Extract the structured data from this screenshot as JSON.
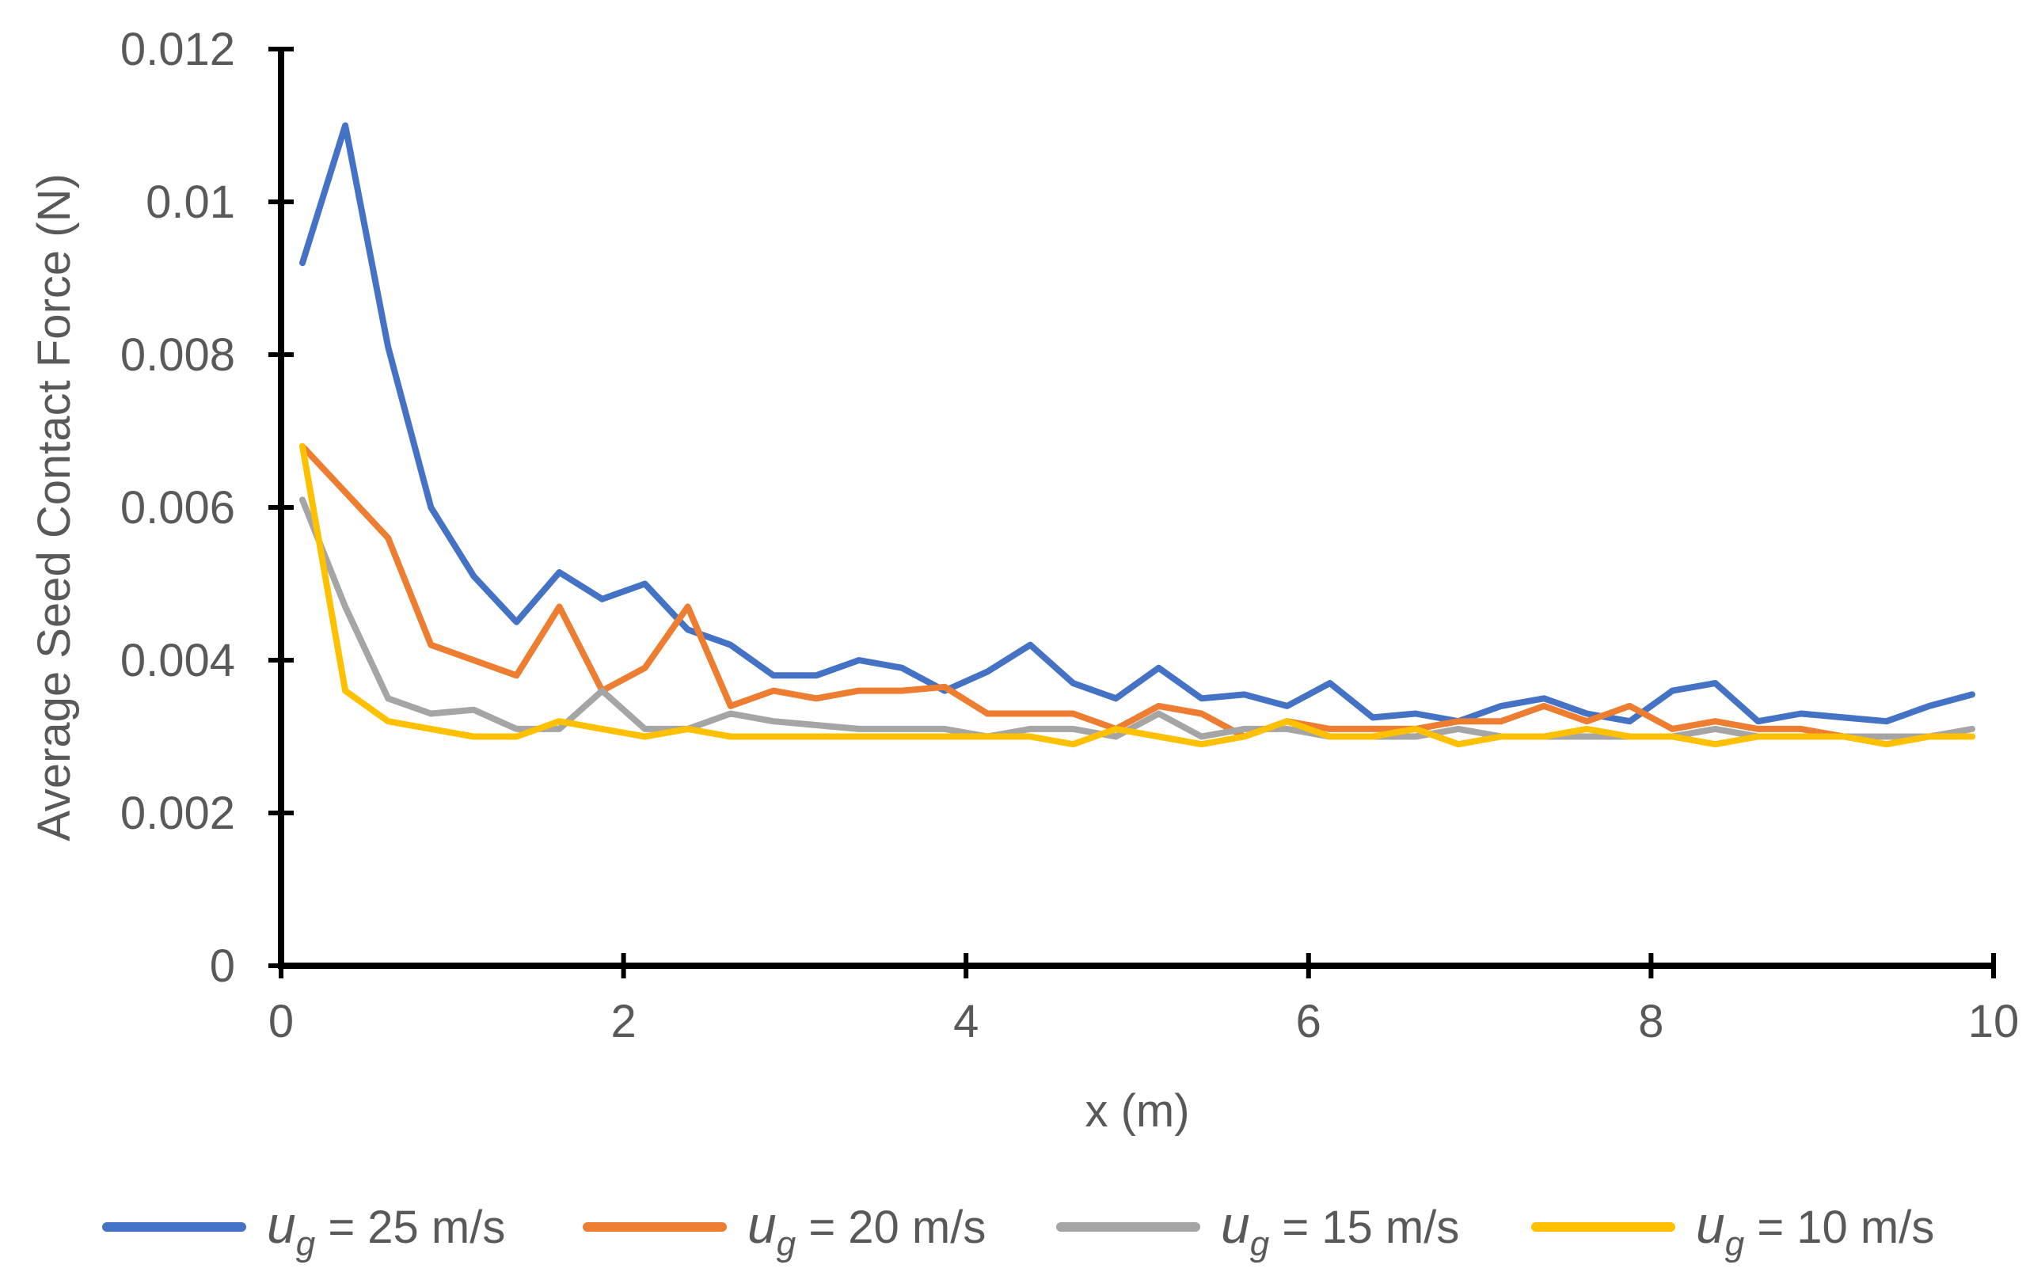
{
  "chart_data": {
    "type": "line",
    "title": "",
    "xlabel": "x (m)",
    "ylabel": "Average Seed Contact Force (N)",
    "xlim": [
      0,
      10
    ],
    "ylim": [
      0,
      0.012
    ],
    "xticks": [
      0,
      2,
      4,
      6,
      8,
      10
    ],
    "xtick_labels": [
      "0",
      "2",
      "4",
      "6",
      "8",
      "10"
    ],
    "yticks": [
      0,
      0.002,
      0.004,
      0.006,
      0.008,
      0.01,
      0.012
    ],
    "ytick_labels": [
      "0",
      "0.002",
      "0.004",
      "0.006",
      "0.008",
      "0.01",
      "0.012"
    ],
    "grid": false,
    "legend_position": "bottom",
    "x": [
      0.125,
      0.375,
      0.625,
      0.875,
      1.125,
      1.375,
      1.625,
      1.875,
      2.125,
      2.375,
      2.625,
      2.875,
      3.125,
      3.375,
      3.625,
      3.875,
      4.125,
      4.375,
      4.625,
      4.875,
      5.125,
      5.375,
      5.625,
      5.875,
      6.125,
      6.375,
      6.625,
      6.875,
      7.125,
      7.375,
      7.625,
      7.875,
      8.125,
      8.375,
      8.625,
      8.875,
      9.125,
      9.375,
      9.625,
      9.875
    ],
    "series": [
      {
        "name": "u_g = 25 m/s",
        "legend_symbol": "u",
        "legend_subscript": "g",
        "legend_text": " = 25 m/s",
        "color": "#4472C4",
        "values": [
          0.0092,
          0.011,
          0.0081,
          0.006,
          0.0051,
          0.0045,
          0.00515,
          0.0048,
          0.005,
          0.0044,
          0.0042,
          0.0038,
          0.0038,
          0.004,
          0.0039,
          0.0036,
          0.00385,
          0.0042,
          0.0037,
          0.0035,
          0.0039,
          0.0035,
          0.00355,
          0.0034,
          0.0037,
          0.00325,
          0.0033,
          0.0032,
          0.0034,
          0.0035,
          0.0033,
          0.0032,
          0.0036,
          0.0037,
          0.0032,
          0.0033,
          0.00325,
          0.0032,
          0.0034,
          0.00355
        ]
      },
      {
        "name": "u_g = 20 m/s",
        "legend_symbol": "u",
        "legend_subscript": "g",
        "legend_text": " = 20 m/s",
        "color": "#ED7D31",
        "values": [
          0.0068,
          0.0062,
          0.0056,
          0.0042,
          0.004,
          0.0038,
          0.0047,
          0.0036,
          0.0039,
          0.0047,
          0.0034,
          0.0036,
          0.0035,
          0.0036,
          0.0036,
          0.00365,
          0.0033,
          0.0033,
          0.0033,
          0.0031,
          0.0034,
          0.0033,
          0.003,
          0.0032,
          0.0031,
          0.0031,
          0.0031,
          0.0032,
          0.0032,
          0.0034,
          0.0032,
          0.0034,
          0.0031,
          0.0032,
          0.0031,
          0.0031,
          0.003,
          0.003,
          0.003,
          0.003
        ]
      },
      {
        "name": "u_g = 15 m/s",
        "legend_symbol": "u",
        "legend_subscript": "g",
        "legend_text": " = 15 m/s",
        "color": "#A5A5A5",
        "values": [
          0.0061,
          0.0047,
          0.0035,
          0.0033,
          0.00335,
          0.0031,
          0.0031,
          0.0036,
          0.0031,
          0.0031,
          0.0033,
          0.0032,
          0.00315,
          0.0031,
          0.0031,
          0.0031,
          0.003,
          0.0031,
          0.0031,
          0.003,
          0.0033,
          0.003,
          0.0031,
          0.0031,
          0.003,
          0.003,
          0.003,
          0.0031,
          0.003,
          0.003,
          0.003,
          0.003,
          0.003,
          0.0031,
          0.003,
          0.003,
          0.003,
          0.003,
          0.003,
          0.0031
        ]
      },
      {
        "name": "u_g = 10 m/s",
        "legend_symbol": "u",
        "legend_subscript": "g",
        "legend_text": " = 10 m/s",
        "color": "#FFC000",
        "values": [
          0.0068,
          0.0036,
          0.0032,
          0.0031,
          0.003,
          0.003,
          0.0032,
          0.0031,
          0.003,
          0.0031,
          0.003,
          0.003,
          0.003,
          0.003,
          0.003,
          0.003,
          0.003,
          0.003,
          0.0029,
          0.0031,
          0.003,
          0.0029,
          0.003,
          0.0032,
          0.003,
          0.003,
          0.0031,
          0.0029,
          0.003,
          0.003,
          0.0031,
          0.003,
          0.003,
          0.0029,
          0.003,
          0.003,
          0.003,
          0.0029,
          0.003,
          0.003
        ]
      }
    ]
  }
}
